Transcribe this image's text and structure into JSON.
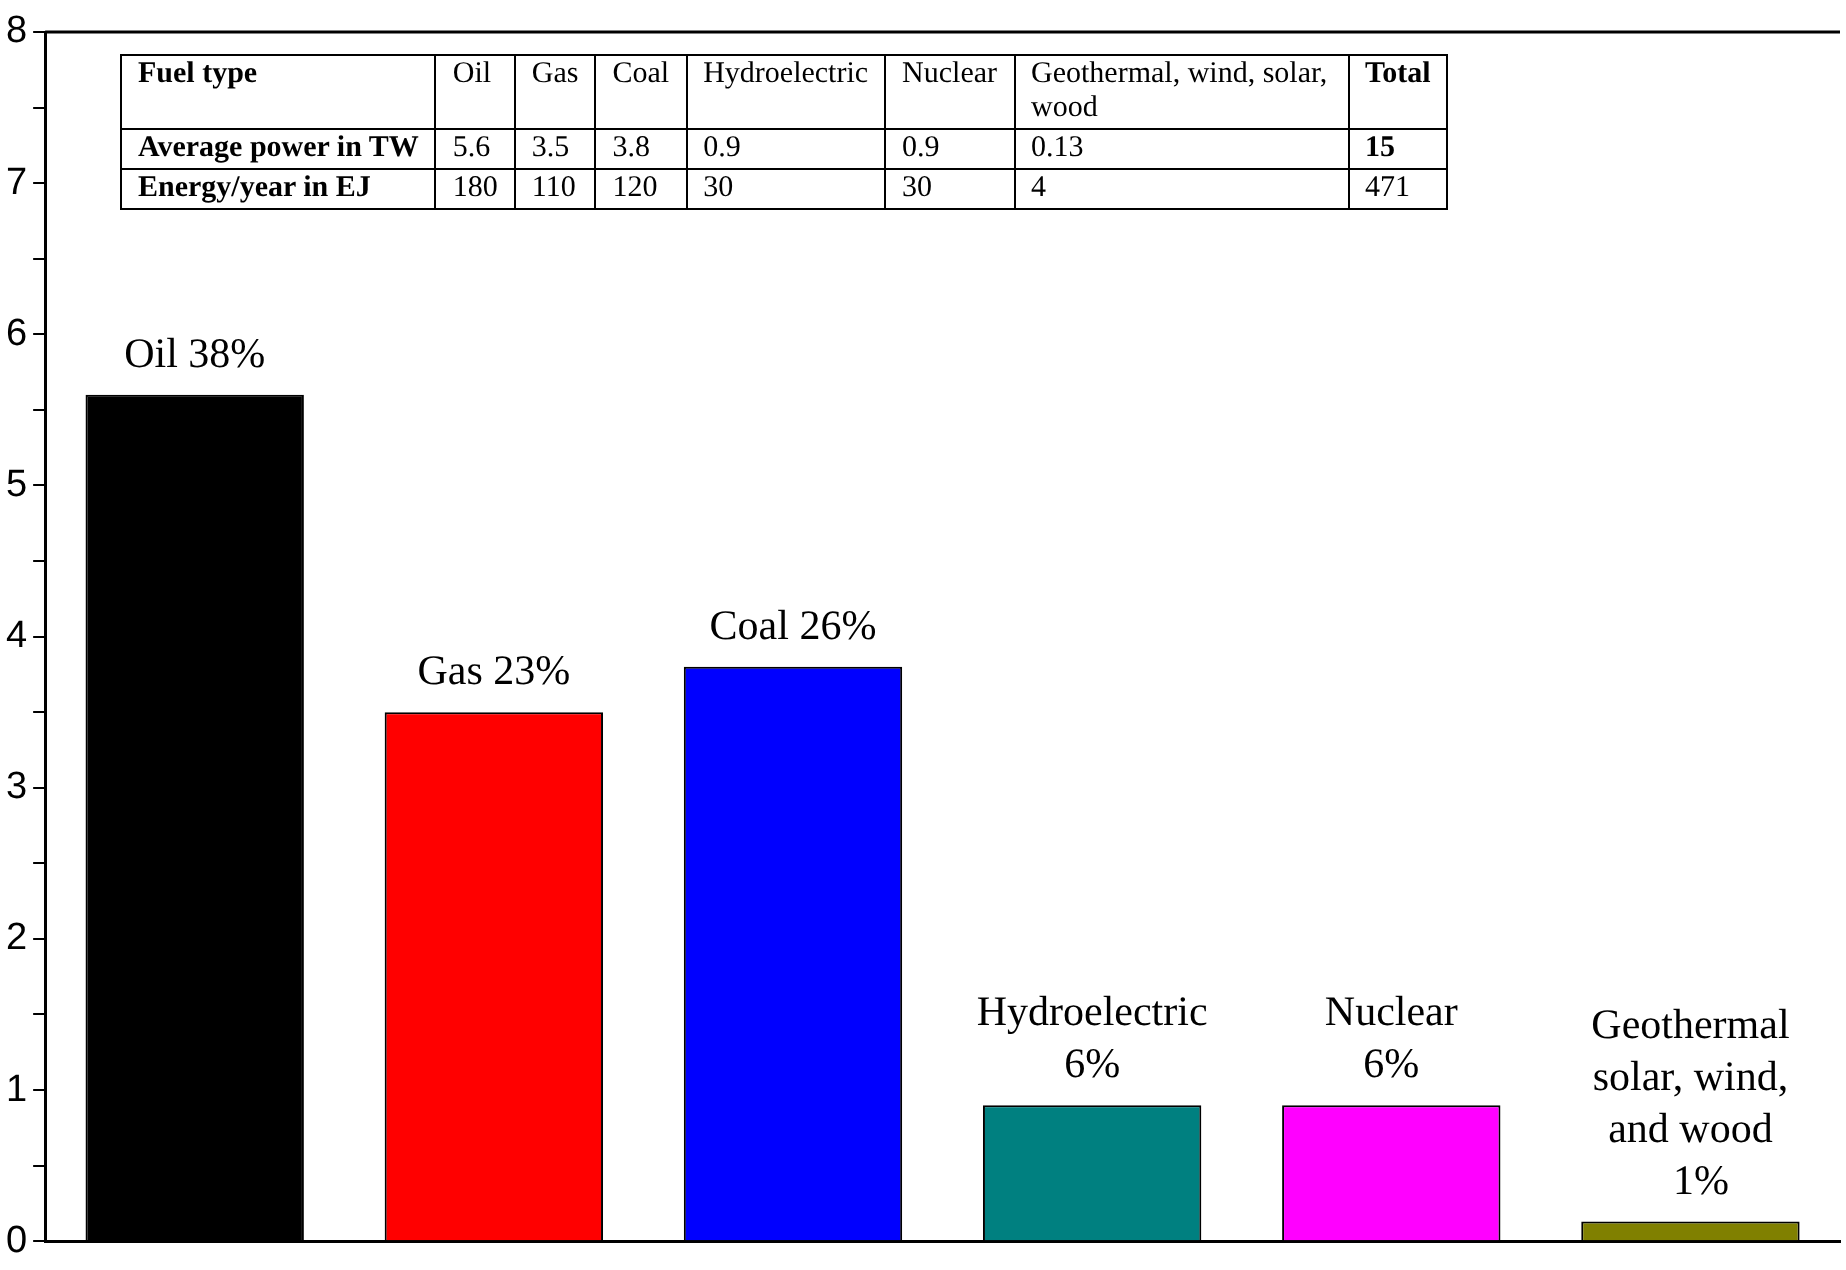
{
  "chart_data": {
    "type": "bar",
    "categories": [
      null,
      null,
      null,
      null,
      null,
      null
    ],
    "values": [
      5.6,
      3.5,
      3.8,
      0.9,
      0.9,
      0.13
    ],
    "colors": [
      "#000000",
      "#ff0000",
      "#0000ff",
      "#008080",
      "#ff00ff",
      "#808000"
    ],
    "value_labels": [
      "Oil 38%",
      "Gas 23%",
      "Coal 26%",
      "Hydroelectric\n6%",
      "Nuclear\n6%",
      "Geothermal\nsolar, wind,\nand wood\n  1%"
    ],
    "ylim": [
      0,
      8
    ],
    "yticks": [
      0,
      {
        "value": 0.5,
        "label": null
      },
      1,
      {
        "value": 1.5,
        "label": null
      },
      2,
      {
        "value": 2.5,
        "label": null
      },
      3,
      {
        "value": 3.5,
        "label": null
      },
      4,
      {
        "value": 4.5,
        "label": null
      },
      5,
      {
        "value": 5.5,
        "label": null
      },
      6,
      {
        "value": 6.5,
        "label": null
      },
      7,
      {
        "value": 7.5,
        "label": null
      },
      8
    ],
    "grid": false,
    "annotations": [
      "Fuel type",
      "Oil",
      "Gas",
      "Coal",
      "Hydroelectric",
      "Nuclear",
      "Geothermal, wind, solar, wood",
      "Total",
      "Average power in TW",
      "5.6",
      "3.5",
      "3.8",
      "0.9",
      "0.9",
      "0.13",
      "15",
      "Energy/year in EJ",
      "180",
      "110",
      "120",
      "30",
      "30",
      "4",
      "471"
    ]
  }
}
